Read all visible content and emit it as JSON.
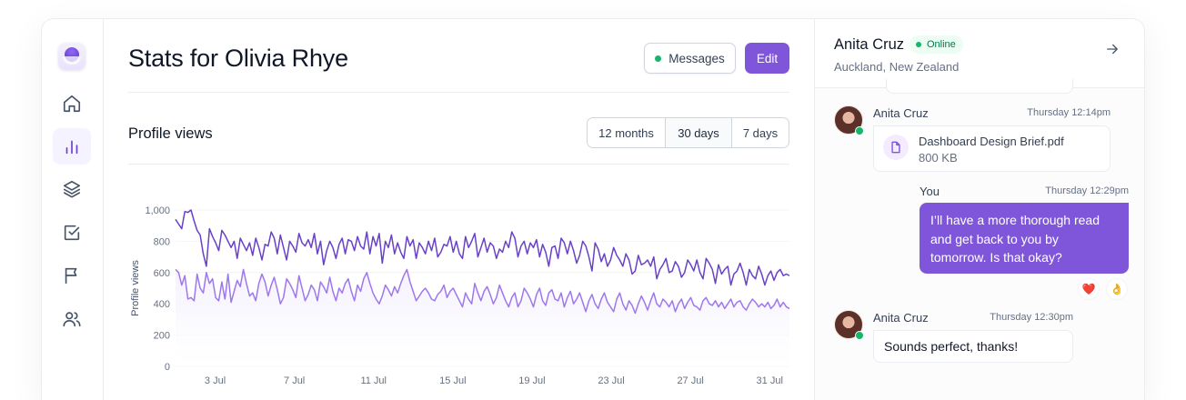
{
  "page": {
    "title": "Stats for Olivia Rhye",
    "messages_button": "Messages",
    "edit_button": "Edit"
  },
  "sidebar": {
    "items": [
      {
        "icon": "home-icon",
        "active": false
      },
      {
        "icon": "bar-chart-icon",
        "active": true
      },
      {
        "icon": "layers-icon",
        "active": false
      },
      {
        "icon": "check-square-icon",
        "active": false
      },
      {
        "icon": "flag-icon",
        "active": false
      },
      {
        "icon": "users-icon",
        "active": false
      }
    ]
  },
  "stats": {
    "section_title": "Profile views",
    "ranges": [
      "12 months",
      "30 days",
      "7 days"
    ],
    "selected_range": "30 days"
  },
  "chart_data": {
    "type": "line",
    "ylabel": "Profile views",
    "ylim": [
      0,
      1000
    ],
    "yticks": [
      "0",
      "200",
      "400",
      "600",
      "800",
      "1,000"
    ],
    "xticks": [
      "3 Jul",
      "7 Jul",
      "11 Jul",
      "15 Jul",
      "19 Jul",
      "23 Jul",
      "27 Jul",
      "31 Jul"
    ],
    "x_range": [
      1,
      32
    ],
    "grid": true,
    "colors": {
      "primary": "#6941c6",
      "secondary": "#9e77ed",
      "area": "#f4f1fd"
    },
    "series": [
      {
        "values": [
          940,
          910,
          880,
          990,
          985,
          1000,
          930,
          870,
          840,
          720,
          640,
          880,
          830,
          790,
          740,
          870,
          840,
          800,
          760,
          800,
          690,
          820,
          780,
          740,
          790,
          710,
          820,
          760,
          680,
          780,
          770,
          860,
          820,
          720,
          840,
          760,
          680,
          800,
          770,
          730,
          850,
          790,
          770,
          810,
          760,
          850,
          720,
          800,
          650,
          740,
          800,
          760,
          690,
          780,
          820,
          720,
          810,
          800,
          740,
          830,
          770,
          750,
          860,
          720,
          830,
          770,
          850,
          660,
          800,
          760,
          840,
          720,
          790,
          730,
          690,
          830,
          770,
          810,
          690,
          790,
          760,
          720,
          800,
          740,
          820,
          700,
          730,
          780,
          770,
          830,
          730,
          800,
          720,
          690,
          830,
          760,
          800,
          850,
          700,
          760,
          820,
          730,
          790,
          770,
          690,
          750,
          730,
          800,
          760,
          860,
          820,
          700,
          770,
          800,
          720,
          790,
          760,
          810,
          700,
          780,
          730,
          640,
          760,
          770,
          690,
          820,
          790,
          720,
          800,
          740,
          660,
          710,
          800,
          770,
          700,
          610,
          790,
          750,
          670,
          720,
          640,
          680,
          760,
          710,
          680,
          640,
          720,
          680,
          590,
          610,
          710,
          650,
          660,
          680,
          640,
          700,
          560,
          620,
          650,
          690,
          600,
          610,
          670,
          640,
          570,
          600,
          680,
          650,
          610,
          680,
          600,
          560,
          690,
          660,
          620,
          530,
          650,
          590,
          620,
          640,
          520,
          590,
          610,
          660,
          600,
          520,
          620,
          580,
          560,
          640,
          590,
          520,
          580,
          610,
          550,
          600,
          620,
          580,
          590,
          580
        ],
        "name": ""
      },
      {
        "values": [
          620,
          600,
          520,
          580,
          430,
          440,
          420,
          590,
          500,
          470,
          600,
          530,
          560,
          440,
          420,
          540,
          430,
          590,
          410,
          480,
          550,
          510,
          620,
          530,
          450,
          470,
          420,
          530,
          590,
          540,
          450,
          520,
          570,
          490,
          400,
          440,
          560,
          530,
          490,
          440,
          580,
          500,
          420,
          460,
          520,
          490,
          420,
          540,
          510,
          470,
          570,
          480,
          420,
          500,
          470,
          530,
          560,
          480,
          420,
          520,
          480,
          560,
          600,
          530,
          470,
          430,
          400,
          450,
          520,
          490,
          450,
          510,
          470,
          530,
          580,
          620,
          540,
          480,
          420,
          450,
          480,
          500,
          470,
          430,
          420,
          460,
          480,
          520,
          440,
          480,
          500,
          460,
          420,
          380,
          470,
          430,
          400,
          530,
          470,
          420,
          480,
          510,
          460,
          400,
          440,
          520,
          470,
          420,
          380,
          440,
          470,
          380,
          420,
          500,
          470,
          430,
          380,
          460,
          500,
          420,
          390,
          470,
          490,
          430,
          420,
          470,
          380,
          440,
          480,
          400,
          430,
          470,
          410,
          350,
          420,
          460,
          400,
          370,
          430,
          470,
          410,
          380,
          350,
          430,
          470,
          400,
          360,
          420,
          390,
          340,
          400,
          450,
          410,
          360,
          420,
          470,
          400,
          380,
          430,
          410,
          380,
          420,
          350,
          400,
          430,
          370,
          410,
          440,
          390,
          380,
          360,
          420,
          440,
          400,
          390,
          420,
          380,
          410,
          370,
          400,
          430,
          380,
          410,
          420,
          380,
          360,
          400,
          430,
          410,
          380,
          400,
          380,
          410,
          370,
          390,
          430,
          380,
          410,
          380,
          370
        ],
        "name": ""
      }
    ]
  },
  "chat": {
    "contact_name": "Anita Cruz",
    "status": "Online",
    "location": "Auckland, New Zealand",
    "messages": [
      {
        "sender": "Anita Cruz",
        "time": "Thursday 12:14pm",
        "file_name": "Dashboard Design Brief.pdf",
        "file_size": "800 KB"
      },
      {
        "sender": "You",
        "time": "Thursday 12:29pm",
        "text": "I’ll have a more thorough read and get back to you by tomorrow. Is that okay?",
        "reactions": [
          "❤️",
          "👌"
        ]
      },
      {
        "sender": "Anita Cruz",
        "time": "Thursday 12:30pm",
        "text": "Sounds perfect, thanks!"
      }
    ]
  }
}
